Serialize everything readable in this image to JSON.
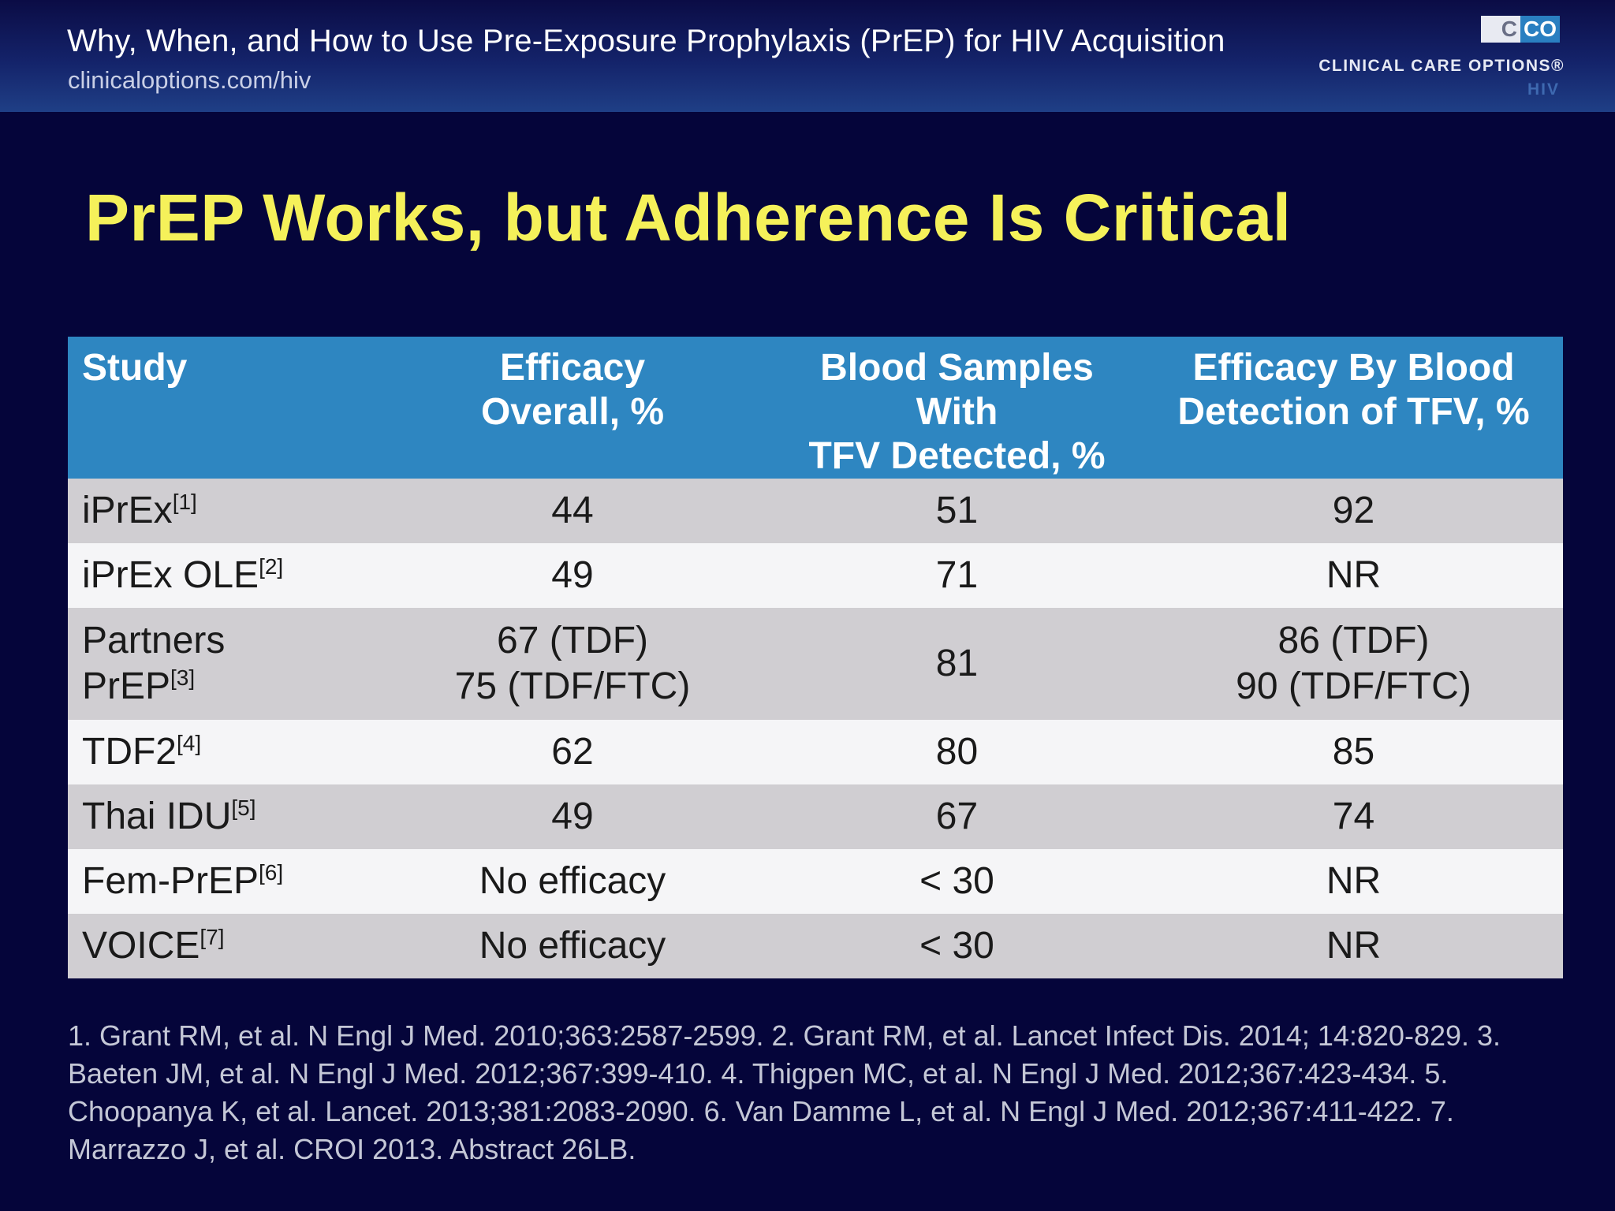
{
  "header": {
    "title": "Why, When, and How to Use Pre-Exposure Prophylaxis (PrEP) for HIV Acquisition",
    "url": "clinicaloptions.com/hiv"
  },
  "logo": {
    "mark_left": "C",
    "mark_right": "CO",
    "name": "CLINICAL CARE OPTIONS®",
    "sub": "HIV"
  },
  "slide": {
    "title": "PrEP Works, but Adherence Is Critical"
  },
  "table": {
    "headers": [
      [
        "Study",
        ""
      ],
      [
        "Efficacy",
        "Overall, %"
      ],
      [
        "Blood Samples With",
        "TFV Detected, %"
      ],
      [
        "Efficacy By Blood",
        "Detection of TFV, %"
      ]
    ],
    "rows": [
      {
        "study": "iPrEx",
        "ref": "[1]",
        "efficacy": [
          "44"
        ],
        "blood": "51",
        "by_blood": [
          "92"
        ]
      },
      {
        "study": "iPrEx OLE",
        "ref": "[2]",
        "efficacy": [
          "49"
        ],
        "blood": "71",
        "by_blood": [
          "NR"
        ]
      },
      {
        "study": "Partners",
        "study2": "PrEP",
        "ref": "[3]",
        "efficacy": [
          "67 (TDF)",
          "75 (TDF/FTC)"
        ],
        "blood": "81",
        "by_blood": [
          "86 (TDF)",
          "90 (TDF/FTC)"
        ]
      },
      {
        "study": "TDF2",
        "ref": "[4]",
        "efficacy": [
          "62"
        ],
        "blood": "80",
        "by_blood": [
          "85"
        ]
      },
      {
        "study": "Thai IDU",
        "ref": "[5]",
        "efficacy": [
          "49"
        ],
        "blood": "67",
        "by_blood": [
          "74"
        ]
      },
      {
        "study": "Fem-PrEP",
        "ref": "[6]",
        "efficacy": [
          "No efficacy"
        ],
        "blood": "< 30",
        "by_blood": [
          "NR"
        ]
      },
      {
        "study": "VOICE",
        "ref": "[7]",
        "efficacy": [
          "No efficacy"
        ],
        "blood": "< 30",
        "by_blood": [
          "NR"
        ]
      }
    ]
  },
  "footnote": "1. Grant RM, et al. N Engl J Med. 2010;363:2587-2599. 2. Grant RM, et al. Lancet Infect Dis. 2014; 14:820-829. 3. Baeten JM, et al. N Engl J Med. 2012;367:399-410. 4. Thigpen MC, et al. N Engl J Med. 2012;367:423-434. 5. Choopanya K, et al. Lancet. 2013;381:2083-2090. 6. Van Damme L, et al. N Engl J Med. 2012;367:411-422. 7. Marrazzo J, et al. CROI 2013. Abstract 26LB.",
  "colors": {
    "background": "#05053a",
    "title_yellow": "#f5f15a",
    "table_header": "#2e86c1",
    "row_gray": "#d0ced2",
    "row_white": "#f5f5f7"
  }
}
